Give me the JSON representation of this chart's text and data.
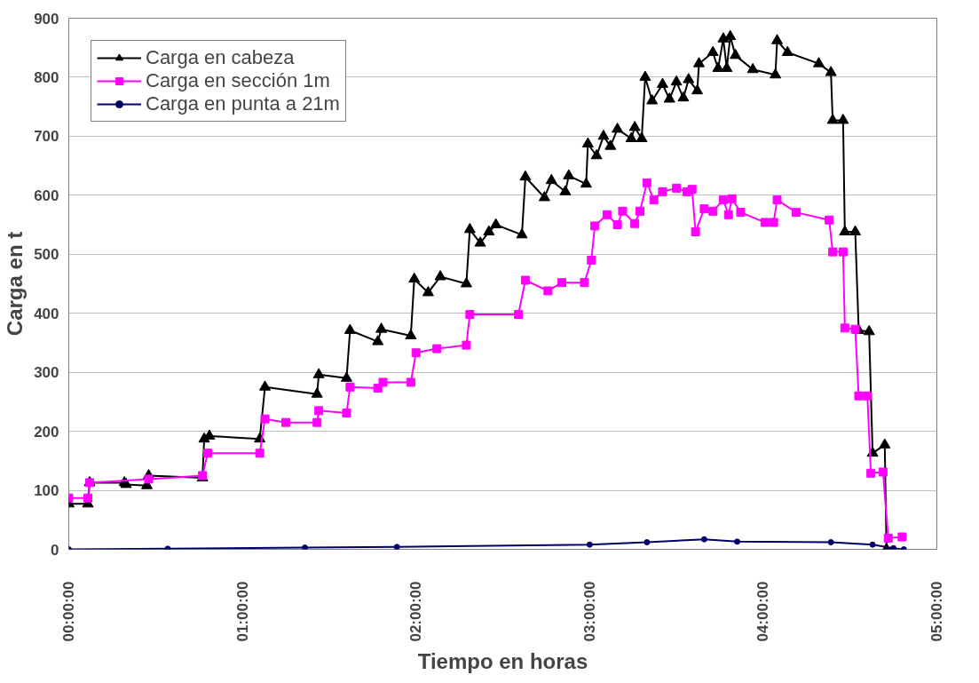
{
  "chart_data": {
    "type": "line",
    "xlabel": "Tiempo en horas",
    "ylabel": "Carga en t",
    "xlim": [
      0,
      5
    ],
    "xticks": [
      {
        "value": 0,
        "label": "00:00:00"
      },
      {
        "value": 1,
        "label": "01:00:00"
      },
      {
        "value": 2,
        "label": "02:00:00"
      },
      {
        "value": 3,
        "label": "03:00:00"
      },
      {
        "value": 4,
        "label": "04:00:00"
      },
      {
        "value": 5,
        "label": "05:00:00"
      }
    ],
    "ylim": [
      0,
      900
    ],
    "yticks": [
      0,
      100,
      200,
      300,
      400,
      500,
      600,
      700,
      800,
      900
    ],
    "grid": "y",
    "legend": "top left",
    "series": [
      {
        "name": "Carga en cabeza",
        "color": "#000000",
        "marker": "triangle",
        "x": [
          0.0,
          0.11,
          0.12,
          0.32,
          0.33,
          0.45,
          0.46,
          0.77,
          0.78,
          0.81,
          1.1,
          1.13,
          1.43,
          1.44,
          1.6,
          1.62,
          1.78,
          1.8,
          1.97,
          1.99,
          2.07,
          2.14,
          2.29,
          2.31,
          2.37,
          2.42,
          2.46,
          2.61,
          2.63,
          2.74,
          2.78,
          2.86,
          2.88,
          2.98,
          2.99,
          3.04,
          3.08,
          3.12,
          3.16,
          3.24,
          3.26,
          3.3,
          3.32,
          3.36,
          3.42,
          3.46,
          3.5,
          3.54,
          3.57,
          3.62,
          3.63,
          3.71,
          3.74,
          3.77,
          3.79,
          3.81,
          3.84,
          3.94,
          4.07,
          4.08,
          4.14,
          4.32,
          4.39,
          4.4,
          4.46,
          4.47,
          4.53,
          4.55,
          4.61,
          4.63,
          4.7,
          4.71
        ],
        "values": [
          77,
          77,
          113,
          113,
          110,
          108,
          125,
          121,
          187,
          192,
          187,
          275,
          263,
          296,
          290,
          371,
          352,
          373,
          362,
          458,
          435,
          462,
          450,
          542,
          519,
          538,
          550,
          533,
          631,
          596,
          625,
          606,
          633,
          619,
          687,
          667,
          700,
          683,
          712,
          696,
          715,
          696,
          800,
          760,
          788,
          763,
          792,
          765,
          796,
          777,
          823,
          842,
          815,
          865,
          815,
          869,
          837,
          813,
          804,
          862,
          842,
          823,
          808,
          727,
          727,
          538,
          538,
          371,
          369,
          163,
          177,
          0
        ]
      },
      {
        "name": "Carga en sección 1m",
        "color": "#ff00ff",
        "marker": "square",
        "x": [
          0.0,
          0.11,
          0.12,
          0.46,
          0.77,
          0.8,
          1.1,
          1.13,
          1.25,
          1.43,
          1.44,
          1.6,
          1.62,
          1.78,
          1.81,
          1.97,
          2.0,
          2.12,
          2.29,
          2.31,
          2.59,
          2.63,
          2.76,
          2.84,
          2.97,
          3.01,
          3.03,
          3.1,
          3.16,
          3.19,
          3.26,
          3.29,
          3.33,
          3.37,
          3.42,
          3.5,
          3.56,
          3.59,
          3.61,
          3.66,
          3.71,
          3.77,
          3.8,
          3.82,
          3.87,
          4.01,
          4.06,
          4.08,
          4.19,
          4.38,
          4.4,
          4.46,
          4.47,
          4.53,
          4.55,
          4.6,
          4.62,
          4.69,
          4.72,
          4.8
        ],
        "values": [
          87,
          87,
          113,
          119,
          125,
          163,
          163,
          221,
          215,
          215,
          235,
          231,
          275,
          273,
          283,
          283,
          333,
          340,
          346,
          398,
          398,
          456,
          438,
          452,
          452,
          490,
          548,
          567,
          550,
          573,
          552,
          573,
          621,
          592,
          606,
          612,
          606,
          610,
          538,
          577,
          573,
          592,
          567,
          594,
          571,
          554,
          554,
          592,
          571,
          558,
          504,
          504,
          375,
          373,
          260,
          260,
          129,
          131,
          19,
          21
        ]
      },
      {
        "name": "Carga en punta a 21m",
        "color": "#000066",
        "marker": "circle",
        "x": [
          0.0,
          0.57,
          1.36,
          1.89,
          3.0,
          3.33,
          3.66,
          3.85,
          4.39,
          4.63,
          4.75,
          4.81
        ],
        "values": [
          0,
          1,
          3,
          4,
          8,
          12,
          17,
          13,
          12,
          8,
          2,
          0
        ]
      }
    ]
  }
}
